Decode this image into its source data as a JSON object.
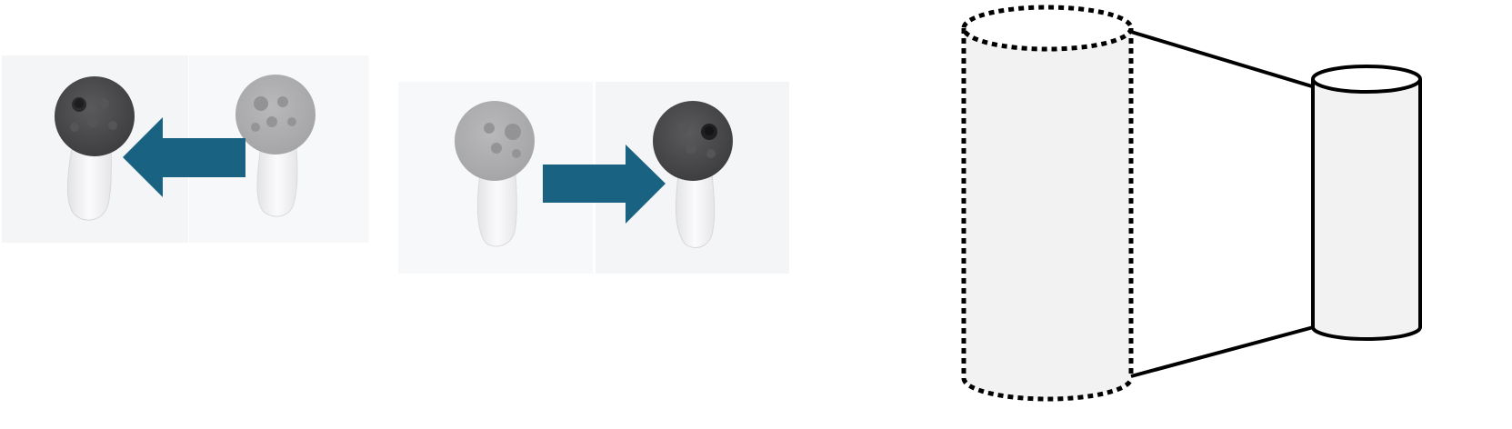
{
  "figure": {
    "panels": [
      {
        "id": "swap-left",
        "description_free": true,
        "arrow_direction": "left",
        "active_side": "left",
        "inactive_side": "right"
      },
      {
        "id": "swap-right",
        "description_free": true,
        "arrow_direction": "right",
        "active_side": "right",
        "inactive_side": "left"
      }
    ],
    "scale_diagram": {
      "large_cylinder_style": "dotted",
      "small_cylinder_style": "solid"
    }
  },
  "colors": {
    "arrow": "#1a6282",
    "panel_bg": "#f4f5f7",
    "controller_active": "#4a4a4c",
    "controller_inactive": "#a9a9ab",
    "handle": "#eeeef0",
    "cylinder_fill": "#f2f2f2",
    "stroke": "#000000"
  },
  "icons": {
    "controller": "vr-controller-icon",
    "arrow_left": "arrow-left-icon",
    "arrow_right": "arrow-right-icon"
  }
}
